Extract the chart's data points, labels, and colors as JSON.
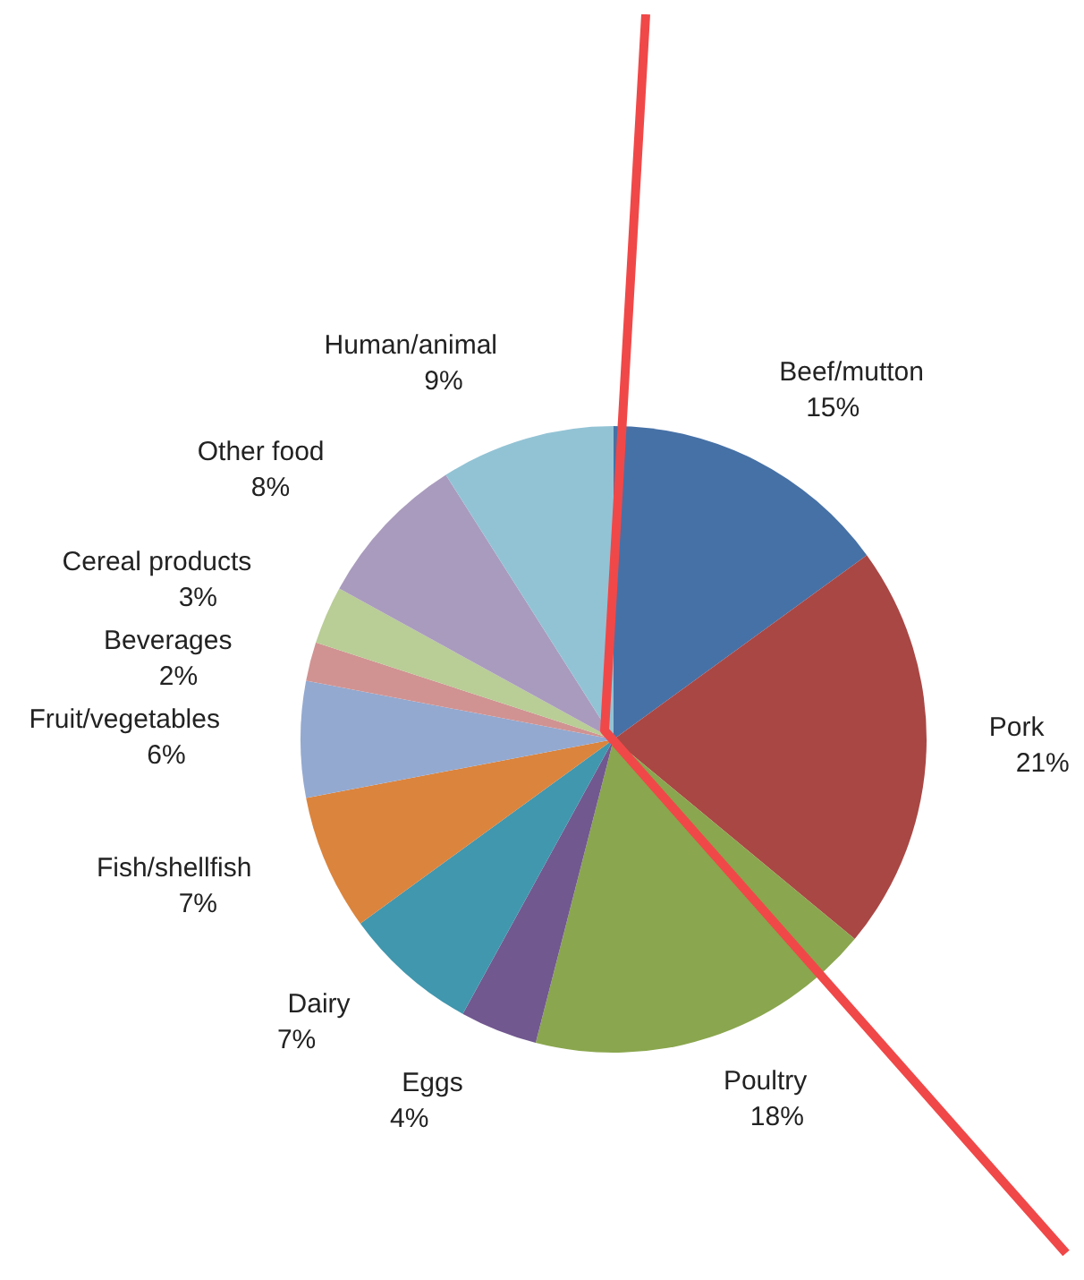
{
  "chart_data": {
    "type": "pie",
    "categories": [
      "Beef/mutton",
      "Pork",
      "Poultry",
      "Eggs",
      "Dairy",
      "Fish/shellfish",
      "Fruit/vegetables",
      "Beverages",
      "Cereal products",
      "Other food",
      "Human/animal"
    ],
    "values": [
      15,
      21,
      18,
      4,
      7,
      7,
      6,
      2,
      3,
      8,
      9
    ],
    "value_labels": [
      "15%",
      "21%",
      "18%",
      "4%",
      "7%",
      "7%",
      "6%",
      "2%",
      "3%",
      "8%",
      "9%"
    ],
    "colors": [
      "#4671a6",
      "#a94744",
      "#8aa64e",
      "#71588f",
      "#4097ae",
      "#db843d",
      "#93a9d0",
      "#d09392",
      "#b9cd96",
      "#a99bbd",
      "#92c3d5"
    ],
    "legend": false
  }
}
